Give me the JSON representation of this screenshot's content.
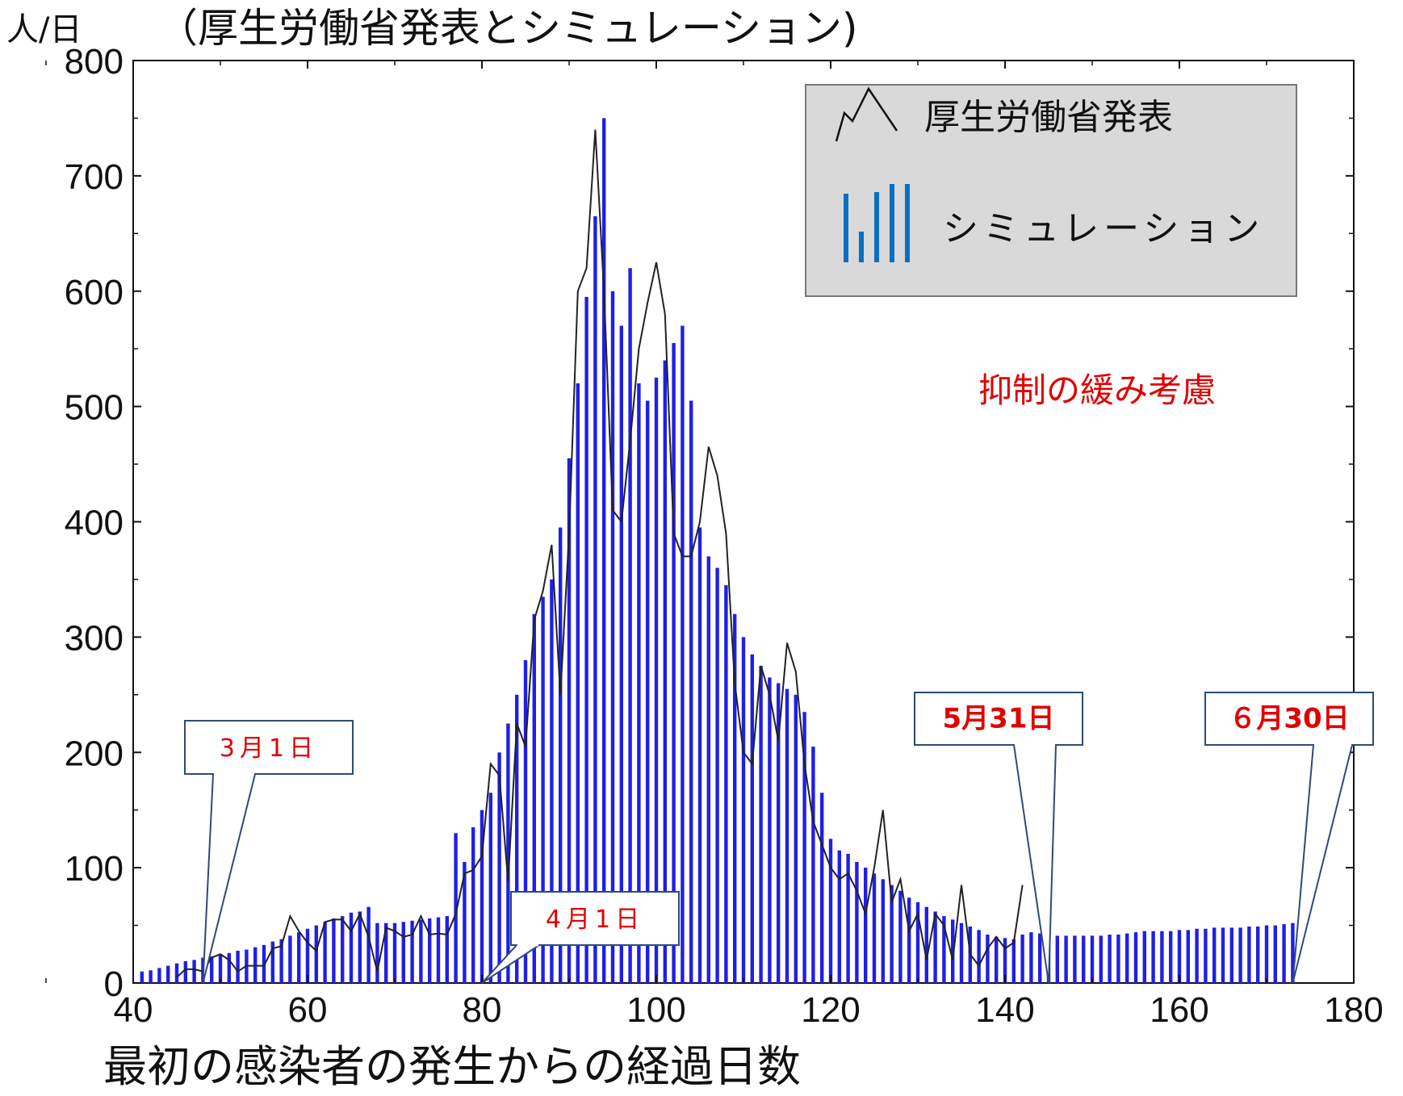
{
  "chart_data": {
    "type": "bar",
    "title": "（厚生労働省発表とシミュレーション)",
    "ylabel": "人/日",
    "xlabel": "最初の感染者の発生からの経過日数",
    "xlim": [
      40,
      180
    ],
    "ylim": [
      0,
      800
    ],
    "xticks": [
      "40",
      "60",
      "80",
      "100",
      "120",
      "140",
      "160",
      "180"
    ],
    "yticks": [
      "0",
      "100",
      "200",
      "300",
      "400",
      "500",
      "600",
      "700",
      "800"
    ],
    "grid": false,
    "legend_position": "top-right",
    "annotation": "抑制の緩み考慮",
    "callouts": [
      {
        "label_a": "3月1日",
        "x": 48
      },
      {
        "label_a": "4月1日",
        "x": 80
      },
      {
        "label_a": "5月31日",
        "x": 145
      },
      {
        "label_a": "６月30日",
        "x": 173
      }
    ],
    "series": [
      {
        "name": "シミュレーション",
        "type": "bar",
        "color": "#1f1fe6",
        "x": [
          41,
          42,
          43,
          44,
          45,
          46,
          47,
          48,
          49,
          50,
          51,
          52,
          53,
          54,
          55,
          56,
          57,
          58,
          59,
          60,
          61,
          62,
          63,
          64,
          65,
          66,
          67,
          68,
          69,
          70,
          71,
          72,
          73,
          74,
          75,
          76,
          77,
          78,
          79,
          80,
          81,
          82,
          83,
          84,
          85,
          86,
          87,
          88,
          89,
          90,
          91,
          92,
          93,
          94,
          95,
          96,
          97,
          98,
          99,
          100,
          101,
          102,
          103,
          104,
          105,
          106,
          107,
          108,
          109,
          110,
          111,
          112,
          113,
          114,
          115,
          116,
          117,
          118,
          119,
          120,
          121,
          122,
          123,
          124,
          125,
          126,
          127,
          128,
          129,
          130,
          131,
          132,
          133,
          134,
          135,
          136,
          137,
          138,
          139,
          140,
          141,
          142,
          143,
          144,
          145,
          146,
          147,
          148,
          149,
          150,
          151,
          152,
          153,
          154,
          155,
          156,
          157,
          158,
          159,
          160,
          161,
          162,
          163,
          164,
          165,
          166,
          167,
          168,
          169,
          170,
          171,
          172,
          173
        ],
        "values": [
          10,
          11,
          13,
          15,
          17,
          19,
          20,
          22,
          23,
          25,
          26,
          28,
          29,
          31,
          33,
          36,
          38,
          41,
          44,
          47,
          50,
          53,
          56,
          58,
          61,
          62,
          66,
          52,
          52,
          52,
          53,
          54,
          55,
          56,
          57,
          58,
          130,
          105,
          135,
          150,
          165,
          200,
          225,
          250,
          280,
          320,
          335,
          350,
          395,
          455,
          520,
          595,
          665,
          750,
          600,
          570,
          620,
          520,
          505,
          525,
          540,
          555,
          570,
          505,
          395,
          370,
          360,
          345,
          320,
          300,
          285,
          275,
          265,
          260,
          255,
          250,
          235,
          205,
          165,
          125,
          115,
          112,
          105,
          100,
          95,
          90,
          85,
          80,
          74,
          70,
          66,
          62,
          58,
          55,
          52,
          49,
          46,
          42,
          40,
          39,
          38,
          42,
          44,
          43,
          42,
          41,
          41,
          41,
          41,
          41,
          41,
          42,
          42,
          43,
          44,
          45,
          45,
          45,
          45,
          46,
          46,
          47,
          47,
          48,
          48,
          48,
          48,
          49,
          49,
          50,
          50,
          51,
          52
        ]
      },
      {
        "name": "厚生労働省発表",
        "type": "line",
        "color": "#222222",
        "x": [
          45,
          46,
          47,
          48,
          49,
          50,
          51,
          52,
          53,
          54,
          55,
          56,
          57,
          58,
          59,
          60,
          61,
          62,
          63,
          64,
          65,
          66,
          67,
          68,
          69,
          70,
          71,
          72,
          73,
          74,
          75,
          76,
          77,
          78,
          79,
          80,
          81,
          82,
          83,
          84,
          85,
          86,
          87,
          88,
          89,
          90,
          91,
          92,
          93,
          94,
          95,
          96,
          97,
          98,
          99,
          100,
          101,
          102,
          103,
          104,
          105,
          106,
          107,
          108,
          109,
          110,
          111,
          112,
          113,
          114,
          115,
          116,
          117,
          118,
          119,
          120,
          121,
          122,
          123,
          124,
          125,
          126,
          127,
          128,
          129,
          130,
          131,
          132,
          133,
          134,
          135,
          136,
          137,
          138,
          139,
          140,
          141,
          142
        ],
        "values": [
          5,
          12,
          12,
          10,
          22,
          25,
          20,
          10,
          15,
          15,
          15,
          30,
          32,
          58,
          45,
          35,
          28,
          53,
          55,
          55,
          45,
          60,
          40,
          10,
          48,
          45,
          40,
          42,
          58,
          42,
          43,
          42,
          60,
          95,
          98,
          110,
          190,
          180,
          88,
          225,
          205,
          315,
          340,
          380,
          250,
          390,
          600,
          620,
          740,
          600,
          410,
          400,
          470,
          550,
          590,
          625,
          580,
          390,
          370,
          370,
          400,
          465,
          440,
          390,
          260,
          200,
          190,
          275,
          250,
          210,
          295,
          270,
          190,
          140,
          120,
          100,
          90,
          95,
          80,
          60,
          100,
          150,
          70,
          90,
          45,
          60,
          20,
          60,
          50,
          20,
          85,
          25,
          15,
          30,
          40,
          30,
          35,
          85
        ]
      }
    ]
  }
}
